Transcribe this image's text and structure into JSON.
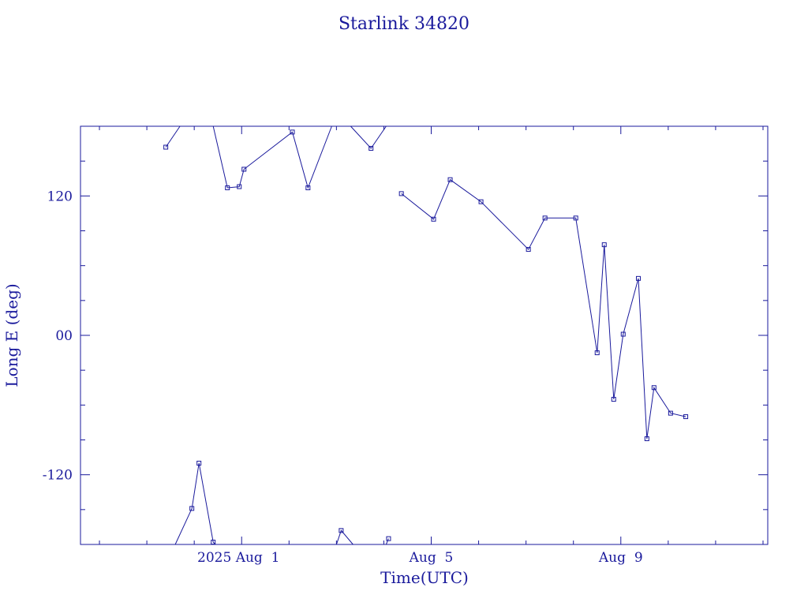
{
  "chart_data": {
    "type": "line",
    "title": "Starlink 34820",
    "xlabel": "Time(UTC)",
    "ylabel": "Long E (deg)",
    "x_tick_labels": [
      "2025 Aug  1",
      "Aug  5",
      "Aug  9"
    ],
    "y_tick_labels": [
      "-120",
      "00",
      "120"
    ],
    "y_ticks": [
      -120,
      0,
      120
    ],
    "x_range_days_from_aug1": [
      -3.4,
      11.1
    ],
    "ylim": [
      -180,
      180
    ],
    "grid": false,
    "legend": "none",
    "x_unit_note": "x values are days relative to 2025 Aug 1 00:00 UTC",
    "series": [
      {
        "segments": [
          [
            [
              -1.6,
              162
            ],
            [
              -1.3,
              180
            ]
          ],
          [
            [
              -0.6,
              180
            ],
            [
              -0.3,
              127
            ],
            [
              -0.05,
              128
            ],
            [
              0.05,
              143
            ],
            [
              1.07,
              175
            ],
            [
              1.4,
              127
            ],
            [
              1.9,
              180
            ]
          ],
          [
            [
              2.3,
              180
            ],
            [
              2.73,
              161
            ],
            [
              3.05,
              180
            ]
          ],
          [
            [
              3.37,
              122
            ],
            [
              4.05,
              100
            ],
            [
              4.4,
              134
            ],
            [
              5.05,
              115
            ],
            [
              6.05,
              74
            ],
            [
              6.4,
              101
            ],
            [
              7.05,
              101
            ],
            [
              7.5,
              -15
            ],
            [
              7.65,
              78
            ],
            [
              7.85,
              -55
            ],
            [
              8.05,
              1
            ],
            [
              8.37,
              49
            ],
            [
              8.55,
              -89
            ],
            [
              8.7,
              -45
            ],
            [
              9.05,
              -67
            ],
            [
              9.37,
              -70
            ]
          ]
        ]
      },
      {
        "segments": [
          [
            [
              -1.4,
              -180
            ],
            [
              -1.05,
              -149
            ],
            [
              -0.9,
              -110
            ],
            [
              -0.6,
              -178
            ],
            [
              -0.55,
              -180
            ]
          ],
          [
            [
              2.0,
              -180
            ],
            [
              2.1,
              -168
            ],
            [
              2.35,
              -180
            ]
          ],
          [
            [
              3.05,
              -180
            ],
            [
              3.1,
              -175
            ]
          ]
        ]
      }
    ],
    "markers": [
      [
        -1.6,
        162
      ],
      [
        -0.3,
        127
      ],
      [
        -0.05,
        128
      ],
      [
        0.05,
        143
      ],
      [
        1.07,
        175
      ],
      [
        1.4,
        127
      ],
      [
        2.73,
        161
      ],
      [
        3.37,
        122
      ],
      [
        4.05,
        100
      ],
      [
        4.4,
        134
      ],
      [
        5.05,
        115
      ],
      [
        6.05,
        74
      ],
      [
        6.4,
        101
      ],
      [
        7.05,
        101
      ],
      [
        7.5,
        -15
      ],
      [
        7.65,
        78
      ],
      [
        7.85,
        -55
      ],
      [
        8.05,
        1
      ],
      [
        8.37,
        49
      ],
      [
        8.55,
        -89
      ],
      [
        8.7,
        -45
      ],
      [
        9.05,
        -67
      ],
      [
        9.37,
        -70
      ],
      [
        -1.05,
        -149
      ],
      [
        -0.9,
        -110
      ],
      [
        -0.6,
        -178
      ],
      [
        2.1,
        -168
      ],
      [
        3.1,
        -175
      ]
    ],
    "colors": {
      "axis": "#1a1a9c",
      "line": "#1a1a9c",
      "text": "#1a1a9c"
    }
  }
}
